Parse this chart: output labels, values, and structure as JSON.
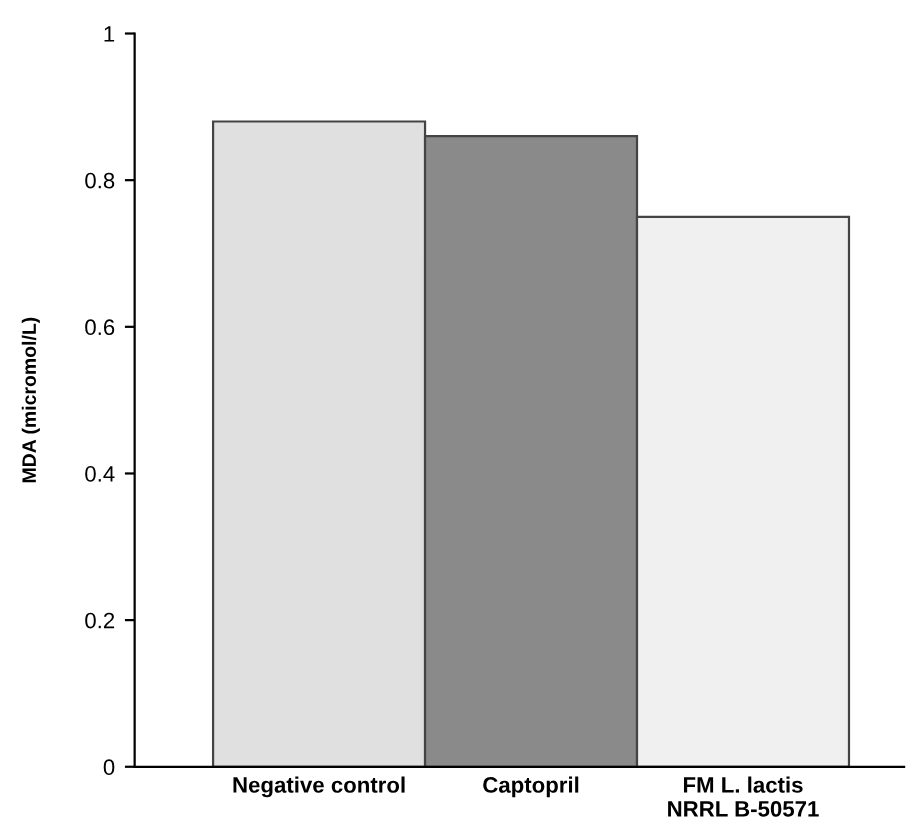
{
  "chart_data": {
    "type": "bar",
    "ylabel": "MDA (micromol/L)",
    "categories": [
      "Negative control",
      "Captopril",
      "FM L. lactis\nNRRL B-50571"
    ],
    "values": [
      0.88,
      0.86,
      0.75
    ],
    "colors": [
      "#e0e0e0",
      "#8a8a8a",
      "#f0f0f0"
    ],
    "ylim": [
      0,
      1
    ],
    "yticks": [
      0,
      0.2,
      0.4,
      0.6,
      0.8,
      1
    ],
    "grid": false,
    "legend": false
  }
}
